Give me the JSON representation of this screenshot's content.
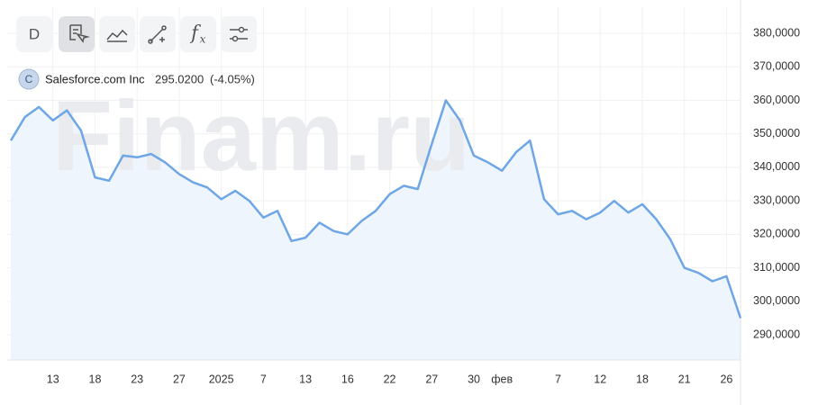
{
  "chart_data": {
    "type": "line",
    "timeframe_button": "D",
    "function_button": {
      "base": "f",
      "sub": "x"
    },
    "badge": "C",
    "title": "Salesforce.com Inc",
    "price": "295.0200",
    "change": "(-4.05%)",
    "watermark": "Finam.ru",
    "categories": [
      null,
      null,
      null,
      "13",
      null,
      null,
      "18",
      null,
      null,
      "23",
      null,
      null,
      "27",
      null,
      null,
      "2025",
      null,
      null,
      "7",
      null,
      null,
      "13",
      null,
      null,
      "16",
      null,
      null,
      "22",
      null,
      null,
      "27",
      null,
      null,
      "30",
      null,
      "фев",
      null,
      null,
      null,
      "7",
      null,
      null,
      "12",
      null,
      null,
      "18",
      null,
      null,
      "21",
      null,
      null,
      "26",
      null
    ],
    "values": [
      348,
      355,
      358,
      354,
      357,
      351,
      337,
      336,
      343.5,
      343,
      344,
      341.5,
      338,
      335.5,
      334,
      330.5,
      333,
      330,
      325,
      327,
      318,
      319,
      323.5,
      321,
      320,
      324,
      327,
      332,
      334.5,
      333.5,
      347,
      360,
      354,
      343.5,
      341.5,
      339,
      344.5,
      348,
      330.5,
      326,
      327,
      324.5,
      326.5,
      330,
      326.5,
      329,
      324.5,
      318.5,
      310,
      308.5,
      306,
      307.5,
      295
    ],
    "color": "#6ea6e6",
    "area_color": "#eef5fc",
    "price_color": "#d0473d",
    "ylim": [
      282.5,
      387.8
    ],
    "yticks": [
      {
        "value": 290,
        "label": "290,0000"
      },
      {
        "value": 300,
        "label": "300,0000"
      },
      {
        "value": 310,
        "label": "310,0000"
      },
      {
        "value": 320,
        "label": "320,0000"
      },
      {
        "value": 330,
        "label": "330,0000"
      },
      {
        "value": 340,
        "label": "340,0000"
      },
      {
        "value": 350,
        "label": "350,0000"
      },
      {
        "value": 360,
        "label": "360,0000"
      },
      {
        "value": 370,
        "label": "370,0000"
      },
      {
        "value": 380,
        "label": "380,0000"
      }
    ],
    "grid": true
  }
}
